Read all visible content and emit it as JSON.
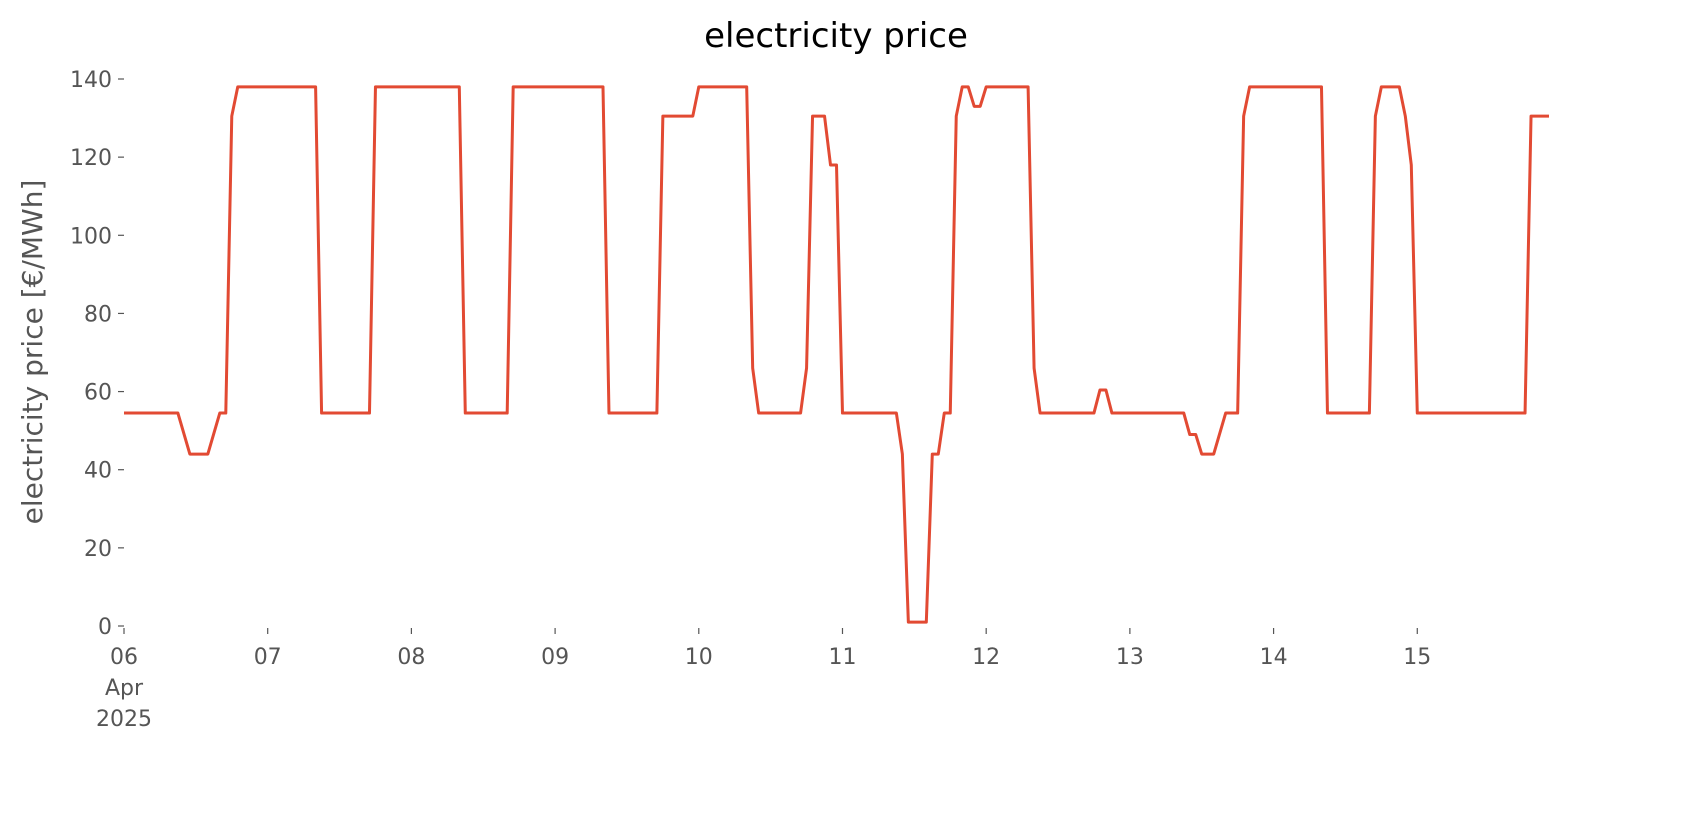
{
  "chart_data": {
    "type": "line",
    "title": "electricity price",
    "ylabel": "electricity price [€/MWh]",
    "x": [
      0,
      9,
      11,
      14,
      16,
      17,
      18,
      19,
      32,
      33,
      41,
      42,
      56,
      57,
      64,
      65,
      80,
      81,
      89,
      90,
      95,
      96,
      104,
      105,
      106,
      113,
      114,
      115,
      117,
      118,
      119,
      120,
      129,
      130,
      131,
      134,
      135,
      136,
      137,
      138,
      139,
      140,
      141,
      142,
      143,
      144,
      151,
      152,
      153,
      162,
      163,
      164,
      165,
      177,
      178,
      179,
      180,
      182,
      184,
      186,
      187,
      188,
      200,
      201,
      208,
      209,
      210,
      213,
      214,
      215,
      216,
      234,
      235,
      238
    ],
    "series": [
      {
        "name": "electricity price",
        "color": "#E24A33",
        "values": [
          54.5,
          54.5,
          44,
          44,
          54.5,
          54.5,
          130.5,
          138,
          138,
          54.5,
          54.5,
          138,
          138,
          54.5,
          54.5,
          138,
          138,
          54.5,
          54.5,
          130.5,
          130.5,
          138,
          138,
          66,
          54.5,
          54.5,
          66,
          130.5,
          130.5,
          118,
          118,
          54.5,
          54.5,
          44,
          1,
          1,
          44,
          44,
          54.5,
          54.5,
          130.5,
          138,
          138,
          133,
          133,
          138,
          138,
          66,
          54.5,
          54.5,
          60.4,
          60.4,
          54.5,
          54.5,
          49,
          49,
          44,
          44,
          54.5,
          54.5,
          130.5,
          138,
          138,
          54.5,
          54.5,
          130.5,
          138,
          138,
          130.5,
          118,
          54.5,
          54.5,
          130.5,
          130.5
        ]
      }
    ],
    "xlim": [
      0,
      238
    ],
    "xticks": [
      {
        "value": 0,
        "label": "06\nApr\n2025"
      },
      {
        "value": 24,
        "label": "07"
      },
      {
        "value": 48,
        "label": "08"
      },
      {
        "value": 72,
        "label": "09"
      },
      {
        "value": 96,
        "label": "10"
      },
      {
        "value": 120,
        "label": "11"
      },
      {
        "value": 144,
        "label": "12"
      },
      {
        "value": 168,
        "label": "13"
      },
      {
        "value": 192,
        "label": "14"
      },
      {
        "value": 216,
        "label": "15"
      }
    ],
    "ylim": [
      0,
      140
    ],
    "yticks": [
      0,
      20,
      40,
      60,
      80,
      100,
      120,
      140
    ],
    "grid": false
  }
}
